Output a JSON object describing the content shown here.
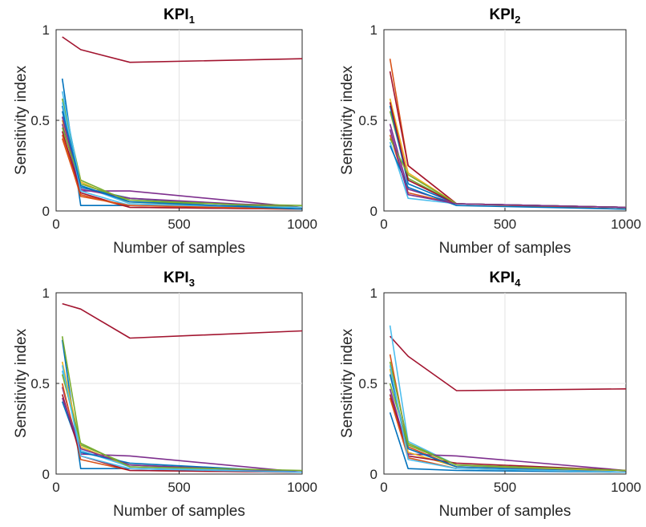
{
  "figure": {
    "panels": [
      {
        "title": "KPI",
        "title_sub": "1"
      },
      {
        "title": "KPI",
        "title_sub": "2"
      },
      {
        "title": "KPI",
        "title_sub": "3"
      },
      {
        "title": "KPI",
        "title_sub": "4"
      }
    ]
  },
  "chart_data": [
    {
      "type": "line",
      "title": "KPI1",
      "xlabel": "Number of samples",
      "ylabel": "Sensitivity index",
      "xlim": [
        0,
        1000
      ],
      "ylim": [
        0,
        1
      ],
      "xticks": [
        0,
        500,
        1000
      ],
      "xtick_labels": [
        "0",
        "500",
        "1000"
      ],
      "yticks": [
        0,
        0.5,
        1
      ],
      "ytick_labels": [
        "0",
        "0.5",
        "1"
      ],
      "grid": true,
      "x": [
        25,
        100,
        300,
        1000
      ],
      "series": [
        {
          "color": "#A2142F",
          "values": [
            0.96,
            0.89,
            0.82,
            0.84
          ]
        },
        {
          "color": "#0072BD",
          "values": [
            0.73,
            0.03,
            0.03,
            0.02
          ]
        },
        {
          "color": "#7E2F8E",
          "values": [
            0.48,
            0.11,
            0.11,
            0.02
          ]
        },
        {
          "color": "#77AC30",
          "values": [
            0.62,
            0.17,
            0.05,
            0.03
          ]
        },
        {
          "color": "#EDB120",
          "values": [
            0.5,
            0.16,
            0.04,
            0.02
          ]
        },
        {
          "color": "#D95319",
          "values": [
            0.4,
            0.09,
            0.02,
            0.01
          ]
        },
        {
          "color": "#4DBEEE",
          "values": [
            0.66,
            0.14,
            0.04,
            0.01
          ]
        },
        {
          "color": "#0072BD",
          "values": [
            0.58,
            0.13,
            0.07,
            0.01
          ]
        },
        {
          "color": "#A2142F",
          "values": [
            0.44,
            0.1,
            0.02,
            0.01
          ]
        },
        {
          "color": "#7E2F8E",
          "values": [
            0.52,
            0.12,
            0.07,
            0.02
          ]
        },
        {
          "color": "#77AC30",
          "values": [
            0.46,
            0.15,
            0.06,
            0.02
          ]
        },
        {
          "color": "#4DBEEE",
          "values": [
            0.6,
            0.11,
            0.03,
            0.02
          ]
        },
        {
          "color": "#D95319",
          "values": [
            0.42,
            0.08,
            0.03,
            0.01
          ]
        },
        {
          "color": "#0072BD",
          "values": [
            0.55,
            0.14,
            0.05,
            0.01
          ]
        }
      ]
    },
    {
      "type": "line",
      "title": "KPI2",
      "xlabel": "Number of samples",
      "ylabel": "Sensitivity index",
      "xlim": [
        0,
        1000
      ],
      "ylim": [
        0,
        1
      ],
      "xticks": [
        0,
        500,
        1000
      ],
      "xtick_labels": [
        "0",
        "500",
        "1000"
      ],
      "yticks": [
        0,
        0.5,
        1
      ],
      "ytick_labels": [
        "0",
        "0.5",
        "1"
      ],
      "grid": true,
      "x": [
        25,
        100,
        300,
        1000
      ],
      "series": [
        {
          "color": "#D95319",
          "values": [
            0.84,
            0.25,
            0.04,
            0.02
          ]
        },
        {
          "color": "#A2142F",
          "values": [
            0.77,
            0.25,
            0.04,
            0.02
          ]
        },
        {
          "color": "#EDB120",
          "values": [
            0.62,
            0.21,
            0.04,
            0.02
          ]
        },
        {
          "color": "#77AC30",
          "values": [
            0.55,
            0.18,
            0.04,
            0.02
          ]
        },
        {
          "color": "#0072BD",
          "values": [
            0.58,
            0.15,
            0.04,
            0.02
          ]
        },
        {
          "color": "#7E2F8E",
          "values": [
            0.48,
            0.12,
            0.04,
            0.02
          ]
        },
        {
          "color": "#4DBEEE",
          "values": [
            0.38,
            0.07,
            0.04,
            0.02
          ]
        },
        {
          "color": "#A2142F",
          "values": [
            0.6,
            0.17,
            0.04,
            0.02
          ]
        },
        {
          "color": "#D95319",
          "values": [
            0.42,
            0.1,
            0.04,
            0.01
          ]
        },
        {
          "color": "#0072BD",
          "values": [
            0.36,
            0.13,
            0.03,
            0.01
          ]
        },
        {
          "color": "#77AC30",
          "values": [
            0.4,
            0.2,
            0.04,
            0.02
          ]
        },
        {
          "color": "#7E2F8E",
          "values": [
            0.45,
            0.09,
            0.04,
            0.02
          ]
        }
      ]
    },
    {
      "type": "line",
      "title": "KPI3",
      "xlabel": "Number of samples",
      "ylabel": "Sensitivity index",
      "xlim": [
        0,
        1000
      ],
      "ylim": [
        0,
        1
      ],
      "xticks": [
        0,
        500,
        1000
      ],
      "xtick_labels": [
        "0",
        "500",
        "1000"
      ],
      "yticks": [
        0,
        0.5,
        1
      ],
      "ytick_labels": [
        "0",
        "0.5",
        "1"
      ],
      "grid": true,
      "x": [
        25,
        100,
        300,
        1000
      ],
      "series": [
        {
          "color": "#A2142F",
          "values": [
            0.94,
            0.91,
            0.75,
            0.79
          ]
        },
        {
          "color": "#0072BD",
          "values": [
            0.74,
            0.03,
            0.03,
            0.01
          ]
        },
        {
          "color": "#77AC30",
          "values": [
            0.76,
            0.16,
            0.05,
            0.01
          ]
        },
        {
          "color": "#7E2F8E",
          "values": [
            0.48,
            0.11,
            0.1,
            0.01
          ]
        },
        {
          "color": "#EDB120",
          "values": [
            0.62,
            0.15,
            0.04,
            0.01
          ]
        },
        {
          "color": "#4DBEEE",
          "values": [
            0.57,
            0.13,
            0.04,
            0.01
          ]
        },
        {
          "color": "#D95319",
          "values": [
            0.5,
            0.08,
            0.02,
            0.01
          ]
        },
        {
          "color": "#0072BD",
          "values": [
            0.4,
            0.12,
            0.06,
            0.01
          ]
        },
        {
          "color": "#A2142F",
          "values": [
            0.44,
            0.1,
            0.02,
            0.01
          ]
        },
        {
          "color": "#7E2F8E",
          "values": [
            0.42,
            0.14,
            0.05,
            0.01
          ]
        },
        {
          "color": "#77AC30",
          "values": [
            0.55,
            0.17,
            0.04,
            0.02
          ]
        },
        {
          "color": "#4DBEEE",
          "values": [
            0.6,
            0.1,
            0.03,
            0.01
          ]
        }
      ]
    },
    {
      "type": "line",
      "title": "KPI4",
      "xlabel": "Number of samples",
      "ylabel": "Sensitivity index",
      "xlim": [
        0,
        1000
      ],
      "ylim": [
        0,
        1
      ],
      "xticks": [
        0,
        500,
        1000
      ],
      "xtick_labels": [
        "0",
        "500",
        "1000"
      ],
      "yticks": [
        0,
        0.5,
        1
      ],
      "ytick_labels": [
        "0",
        "0.5",
        "1"
      ],
      "grid": true,
      "x": [
        25,
        100,
        300,
        1000
      ],
      "series": [
        {
          "color": "#A2142F",
          "values": [
            0.76,
            0.65,
            0.46,
            0.47
          ]
        },
        {
          "color": "#4DBEEE",
          "values": [
            0.82,
            0.18,
            0.05,
            0.01
          ]
        },
        {
          "color": "#D95319",
          "values": [
            0.66,
            0.15,
            0.04,
            0.02
          ]
        },
        {
          "color": "#77AC30",
          "values": [
            0.62,
            0.17,
            0.05,
            0.02
          ]
        },
        {
          "color": "#0072BD",
          "values": [
            0.34,
            0.03,
            0.02,
            0.01
          ]
        },
        {
          "color": "#7E2F8E",
          "values": [
            0.47,
            0.11,
            0.1,
            0.02
          ]
        },
        {
          "color": "#EDB120",
          "values": [
            0.58,
            0.12,
            0.04,
            0.02
          ]
        },
        {
          "color": "#A2142F",
          "values": [
            0.44,
            0.1,
            0.06,
            0.02
          ]
        },
        {
          "color": "#0072BD",
          "values": [
            0.55,
            0.14,
            0.04,
            0.01
          ]
        },
        {
          "color": "#D95319",
          "values": [
            0.42,
            0.09,
            0.03,
            0.01
          ]
        },
        {
          "color": "#77AC30",
          "values": [
            0.5,
            0.16,
            0.05,
            0.02
          ]
        },
        {
          "color": "#4DBEEE",
          "values": [
            0.6,
            0.08,
            0.03,
            0.01
          ]
        }
      ]
    }
  ]
}
